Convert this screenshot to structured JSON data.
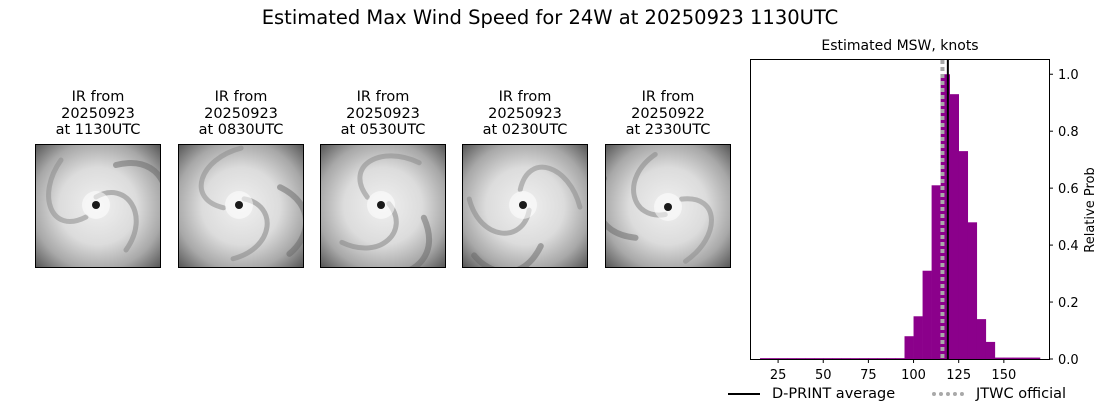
{
  "title": "Estimated Max Wind Speed for 24W at 20250923 1130UTC",
  "ir_panels": [
    {
      "line1": "IR from",
      "line2": "20250923",
      "line3": "at 1130UTC"
    },
    {
      "line1": "IR from",
      "line2": "20250923",
      "line3": "at 0830UTC"
    },
    {
      "line1": "IR from",
      "line2": "20250923",
      "line3": "at 0530UTC"
    },
    {
      "line1": "IR from",
      "line2": "20250923",
      "line3": "at 0230UTC"
    },
    {
      "line1": "IR from",
      "line2": "20250922",
      "line3": "at 2330UTC"
    }
  ],
  "chart_data": {
    "type": "bar",
    "title": "Estimated MSW, knots",
    "xlabel": "",
    "ylabel": "Relative Prob",
    "xlim": [
      10,
      175
    ],
    "ylim": [
      0,
      1.05
    ],
    "x_ticks": [
      25,
      50,
      75,
      100,
      125,
      150
    ],
    "y_ticks": [
      0.0,
      0.2,
      0.4,
      0.6,
      0.8,
      1.0
    ],
    "y_tick_labels": [
      "0.0",
      "0.2",
      "0.4",
      "0.6",
      "0.8",
      "1.0"
    ],
    "bin_width": 5,
    "bins": [
      {
        "x0": 15,
        "value": 0.003
      },
      {
        "x0": 20,
        "value": 0.003
      },
      {
        "x0": 25,
        "value": 0.003
      },
      {
        "x0": 30,
        "value": 0.003
      },
      {
        "x0": 35,
        "value": 0.003
      },
      {
        "x0": 40,
        "value": 0.003
      },
      {
        "x0": 45,
        "value": 0.003
      },
      {
        "x0": 50,
        "value": 0.003
      },
      {
        "x0": 55,
        "value": 0.003
      },
      {
        "x0": 60,
        "value": 0.003
      },
      {
        "x0": 65,
        "value": 0.003
      },
      {
        "x0": 70,
        "value": 0.003
      },
      {
        "x0": 75,
        "value": 0.003
      },
      {
        "x0": 80,
        "value": 0.003
      },
      {
        "x0": 85,
        "value": 0.003
      },
      {
        "x0": 90,
        "value": 0.003
      },
      {
        "x0": 95,
        "value": 0.08
      },
      {
        "x0": 100,
        "value": 0.15
      },
      {
        "x0": 105,
        "value": 0.31
      },
      {
        "x0": 110,
        "value": 0.61
      },
      {
        "x0": 115,
        "value": 1.0
      },
      {
        "x0": 120,
        "value": 0.93
      },
      {
        "x0": 125,
        "value": 0.73
      },
      {
        "x0": 130,
        "value": 0.48
      },
      {
        "x0": 135,
        "value": 0.14
      },
      {
        "x0": 140,
        "value": 0.06
      },
      {
        "x0": 145,
        "value": 0.005
      },
      {
        "x0": 150,
        "value": 0.005
      },
      {
        "x0": 155,
        "value": 0.005
      },
      {
        "x0": 160,
        "value": 0.005
      },
      {
        "x0": 165,
        "value": 0.005
      }
    ],
    "dprint_average": 119,
    "jtwc_official": 116,
    "bar_color": "#8b008b",
    "dprint_color": "#000000",
    "jtwc_color": "#a9a9a9",
    "legend": [
      {
        "label": "D-PRINT average",
        "style": "solid"
      },
      {
        "label": "JTWC official",
        "style": "dashed"
      }
    ],
    "legend_placement": "bottom"
  }
}
